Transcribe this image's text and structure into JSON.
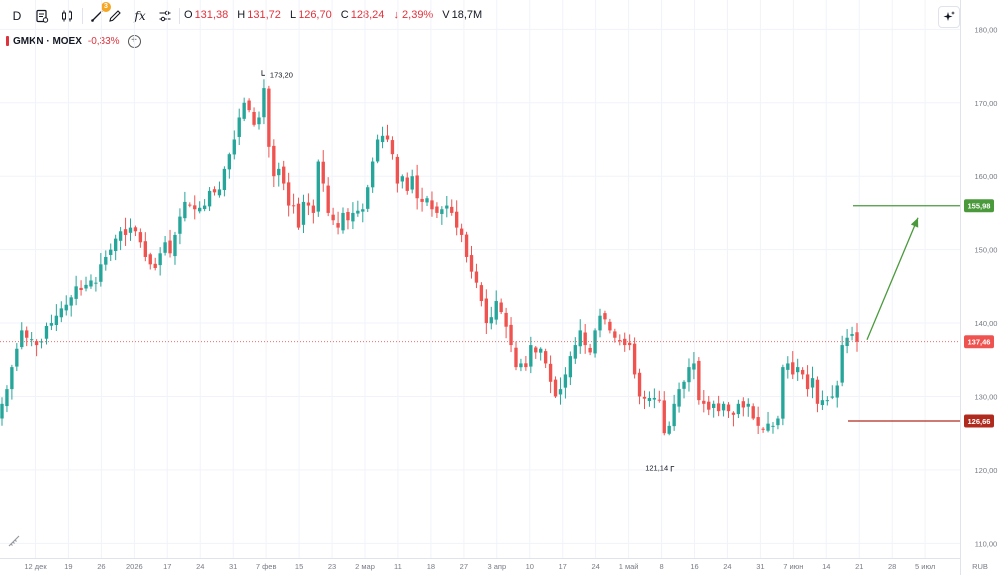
{
  "toolbar": {
    "interval_label": "D",
    "draw_badge": "3"
  },
  "ohlc": {
    "open_key": "O",
    "open": "131,38",
    "high_key": "H",
    "high": "131,72",
    "low_key": "L",
    "low": "126,70",
    "close_key": "C",
    "close": "128,24",
    "change": "↓ 2,39%",
    "volume_key": "V",
    "volume": "18,7M"
  },
  "legend": {
    "symbol": "GMKN · MOEX",
    "change": "-0,33%"
  },
  "icons": {
    "interval": "interval-text",
    "indicators": "indicators-icon",
    "chart_type": "candles-icon",
    "drawing": "drawing-tools-icon",
    "pencil": "pencil-icon",
    "formula": "fx-icon",
    "settings": "sliders-icon",
    "ai": "sparkle-icon",
    "compare": "plus-circle-icon",
    "corner": "ruler-icon"
  },
  "colors": {
    "up": "#26a69a",
    "down": "#ef5350",
    "current_price": "#ef5350",
    "target_up": "#4a9a3c",
    "target_down": "#b02a1e",
    "grid": "#f0f3fa"
  },
  "chart_data": {
    "type": "candlestick",
    "symbol": "GMKN · MOEX",
    "currency_label": "RUB",
    "ylim": [
      108,
      184
    ],
    "y_ticks": [
      "110,00",
      "120,00",
      "130,00",
      "140,00",
      "150,00",
      "160,00",
      "170,00",
      "180,00"
    ],
    "x_ticks": [
      "12 дек",
      "19",
      "26",
      "2026",
      "17",
      "24",
      "31",
      "7 фев",
      "15",
      "23",
      "2 мар",
      "11",
      "18",
      "27",
      "3 апр",
      "10",
      "17",
      "24",
      "1 май",
      "8",
      "16",
      "24",
      "31",
      "7 июн",
      "14",
      "21",
      "28",
      "5 июл"
    ],
    "grid": true,
    "annotations": {
      "high_label": "173,20",
      "high_value": 173.2,
      "low_label": "121,14",
      "low_value": 121.14
    },
    "price_badges": [
      {
        "label": "155,98",
        "value": 155.98,
        "kind": "target-up"
      },
      {
        "label": "137,46",
        "value": 137.46,
        "kind": "current"
      },
      {
        "label": "126,66",
        "value": 126.66,
        "kind": "target-down"
      }
    ],
    "closes": [
      129,
      131,
      134,
      136.5,
      139,
      138,
      137.8,
      137,
      137.5,
      139.6,
      140,
      141,
      142,
      142.5,
      143.5,
      145,
      144.5,
      145.2,
      145.8,
      145.5,
      148,
      149,
      150,
      151.5,
      152.5,
      152,
      153,
      152.5,
      151,
      149,
      148,
      147.5,
      149.5,
      151,
      149.5,
      152,
      154.5,
      156.5,
      156,
      155.5,
      155.7,
      156,
      158,
      157.8,
      158.2,
      161,
      163,
      165,
      168,
      170,
      169,
      167,
      168,
      172,
      164,
      160,
      161,
      159,
      156,
      156,
      153,
      156.5,
      156,
      155,
      162,
      159,
      155,
      154,
      153,
      155,
      154,
      155,
      155.3,
      155.5,
      158.5,
      162,
      165,
      165.5,
      165,
      163,
      159,
      160,
      158,
      160,
      157,
      156.5,
      157,
      155.5,
      155,
      155.5,
      156,
      155,
      153,
      152,
      149,
      147,
      145.5,
      143,
      140,
      140.8,
      143,
      141.5,
      139.5,
      137,
      134,
      134.5,
      134,
      137,
      136,
      136.5,
      134.5,
      132,
      130,
      131,
      133,
      135.5,
      137,
      139,
      137,
      136,
      139,
      141,
      140.5,
      139,
      138,
      137.6,
      137,
      137,
      133,
      130,
      129.7,
      129.8,
      129.8,
      129.5,
      125,
      126,
      129,
      131,
      132,
      134,
      134.5,
      129.5,
      129,
      128.2,
      129,
      128,
      129,
      128,
      127.5,
      129,
      128.5,
      129,
      127,
      126,
      125.5,
      126.3,
      126,
      127,
      134,
      134.5,
      133,
      134,
      133,
      131,
      132.5,
      129,
      129.5,
      129.5,
      130,
      131.5,
      137,
      138,
      138.5,
      137.46
    ],
    "last_candle_shown": true
  }
}
